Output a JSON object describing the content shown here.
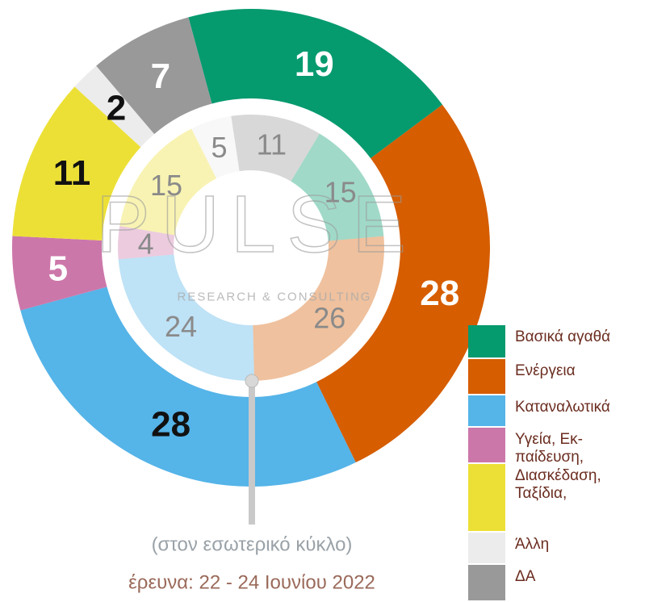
{
  "chart_data": {
    "type": "donut",
    "categories": [
      "Βασικά αγαθά",
      "Ενέργεια",
      "Καταναλωτικά",
      "Υγεία, Εκ-\nπαίδευση,",
      "Διασκέδαση,\nΤαξίδια,",
      "Άλλη",
      "ΔΑ"
    ],
    "colors": [
      "#069a6f",
      "#d65d00",
      "#55b4e8",
      "#cc77aa",
      "#ece037",
      "#ececec",
      "#999999"
    ],
    "series": [
      {
        "values": [
          19,
          28,
          28,
          5,
          11,
          2,
          7
        ],
        "start_angle": -105.2,
        "opacity": 1,
        "label_colors": [
          "#ffffff",
          "#ffffff",
          "#111111",
          "#ffffff",
          "#111111",
          "#111111",
          "#ffffff"
        ]
      },
      {
        "values": [
          15,
          26,
          24,
          4,
          15,
          5,
          11
        ],
        "start_angle": -59,
        "opacity": 0.38,
        "label_colors": [
          "#8a8a8a",
          "#8a8a8a",
          "#8a8a8a",
          "#8a8a8a",
          "#8a8a8a",
          "#8a8a8a",
          "#8a8a8a"
        ]
      }
    ],
    "watermark": "PULSE",
    "watermark_sub": "RESEARCH & CONSULTING",
    "note": "(στον εσωτερικό κύκλο)",
    "footer": "έρευνα:  22 - 24 Ιουνίου 2022"
  }
}
